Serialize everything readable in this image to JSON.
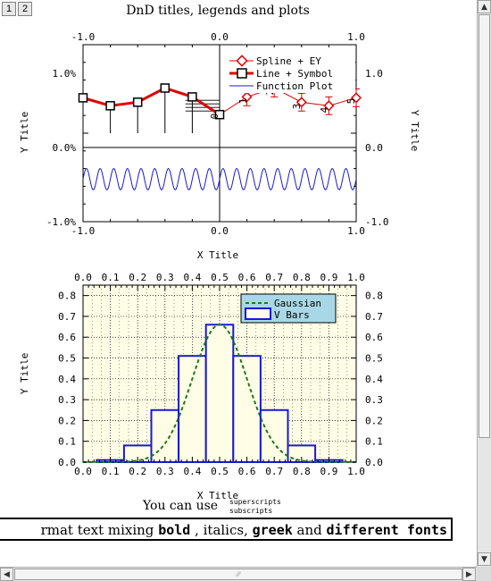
{
  "tabs": [
    "1",
    "2"
  ],
  "title": "DnD titles, legends and plots",
  "top_plot": {
    "xlabel": "X Title",
    "ylabel_left": "Y Title",
    "ylabel_right": "Y Title",
    "x_ticks": [
      "-1.0",
      "0.0",
      "1.0"
    ],
    "y_left_ticks": [
      "1.0%",
      "0.0%",
      "-1.0%"
    ],
    "y_right_ticks": [
      "1.0",
      "0.0",
      "-1.0"
    ],
    "legend": [
      "Spline + EY",
      "Line + Symbol",
      "Function Plot"
    ],
    "point_labels_right": [
      "1",
      "2",
      "3",
      "4",
      "5"
    ],
    "point_labels_left": [
      "0"
    ]
  },
  "bottom_plot": {
    "xlabel": "X Title",
    "ylabel": "Y Title",
    "x_ticks": [
      "0.0",
      "0.1",
      "0.2",
      "0.3",
      "0.4",
      "0.5",
      "0.6",
      "0.7",
      "0.8",
      "0.9",
      "1.0"
    ],
    "y_ticks": [
      "0.0",
      "0.1",
      "0.2",
      "0.3",
      "0.4",
      "0.5",
      "0.6",
      "0.7",
      "0.8"
    ],
    "legend": [
      "Gaussian",
      "V Bars"
    ]
  },
  "annotation": {
    "prefix": "You can use",
    "sup": "superscripts",
    "sub": "subscripts"
  },
  "text_line": {
    "p1": "rmat text mixing ",
    "bold": "bold",
    "p2": " , italics, ",
    "greek": "greek",
    "p3": " and ",
    "fonts": "different fonts"
  },
  "chart_data": [
    {
      "type": "line",
      "title": "DnD titles, legends and plots",
      "xlabel": "X Title",
      "ylabel": "Y Title",
      "xlim": [
        -1.0,
        1.0
      ],
      "ylim": [
        -1.0,
        1.0
      ],
      "series": [
        {
          "name": "Line + Symbol",
          "x": [
            -1.0,
            -0.8,
            -0.6,
            -0.4,
            -0.2,
            0.0
          ],
          "y": [
            0.4,
            0.31,
            0.35,
            0.51,
            0.41,
            0.21
          ]
        },
        {
          "name": "Spline + EY",
          "x": [
            0.0,
            0.2,
            0.4,
            0.6,
            0.8,
            1.0
          ],
          "y": [
            0.21,
            0.41,
            0.51,
            0.35,
            0.31,
            0.4
          ],
          "error": 0.1
        },
        {
          "name": "Function Plot",
          "function": "-0.52 + 0.12*sin(20*pi*x)",
          "x_range": [
            -1.0,
            1.0
          ]
        }
      ]
    },
    {
      "type": "bar",
      "xlabel": "X Title",
      "ylabel": "Y Title",
      "xlim": [
        0.0,
        1.0
      ],
      "ylim": [
        0.0,
        0.85
      ],
      "grid": true,
      "legend_position": "top-right",
      "series": [
        {
          "name": "V Bars",
          "x": [
            0.0,
            0.1,
            0.2,
            0.3,
            0.4,
            0.5,
            0.6,
            0.7,
            0.8,
            0.9,
            1.0
          ],
          "values": [
            0.0,
            0.01,
            0.08,
            0.25,
            0.51,
            0.66,
            0.51,
            0.25,
            0.08,
            0.01,
            0.0
          ]
        },
        {
          "name": "Gaussian",
          "function": "0.66*exp(-(x-0.5)^2/0.02)",
          "x_range": [
            0.0,
            1.0
          ]
        }
      ]
    }
  ]
}
